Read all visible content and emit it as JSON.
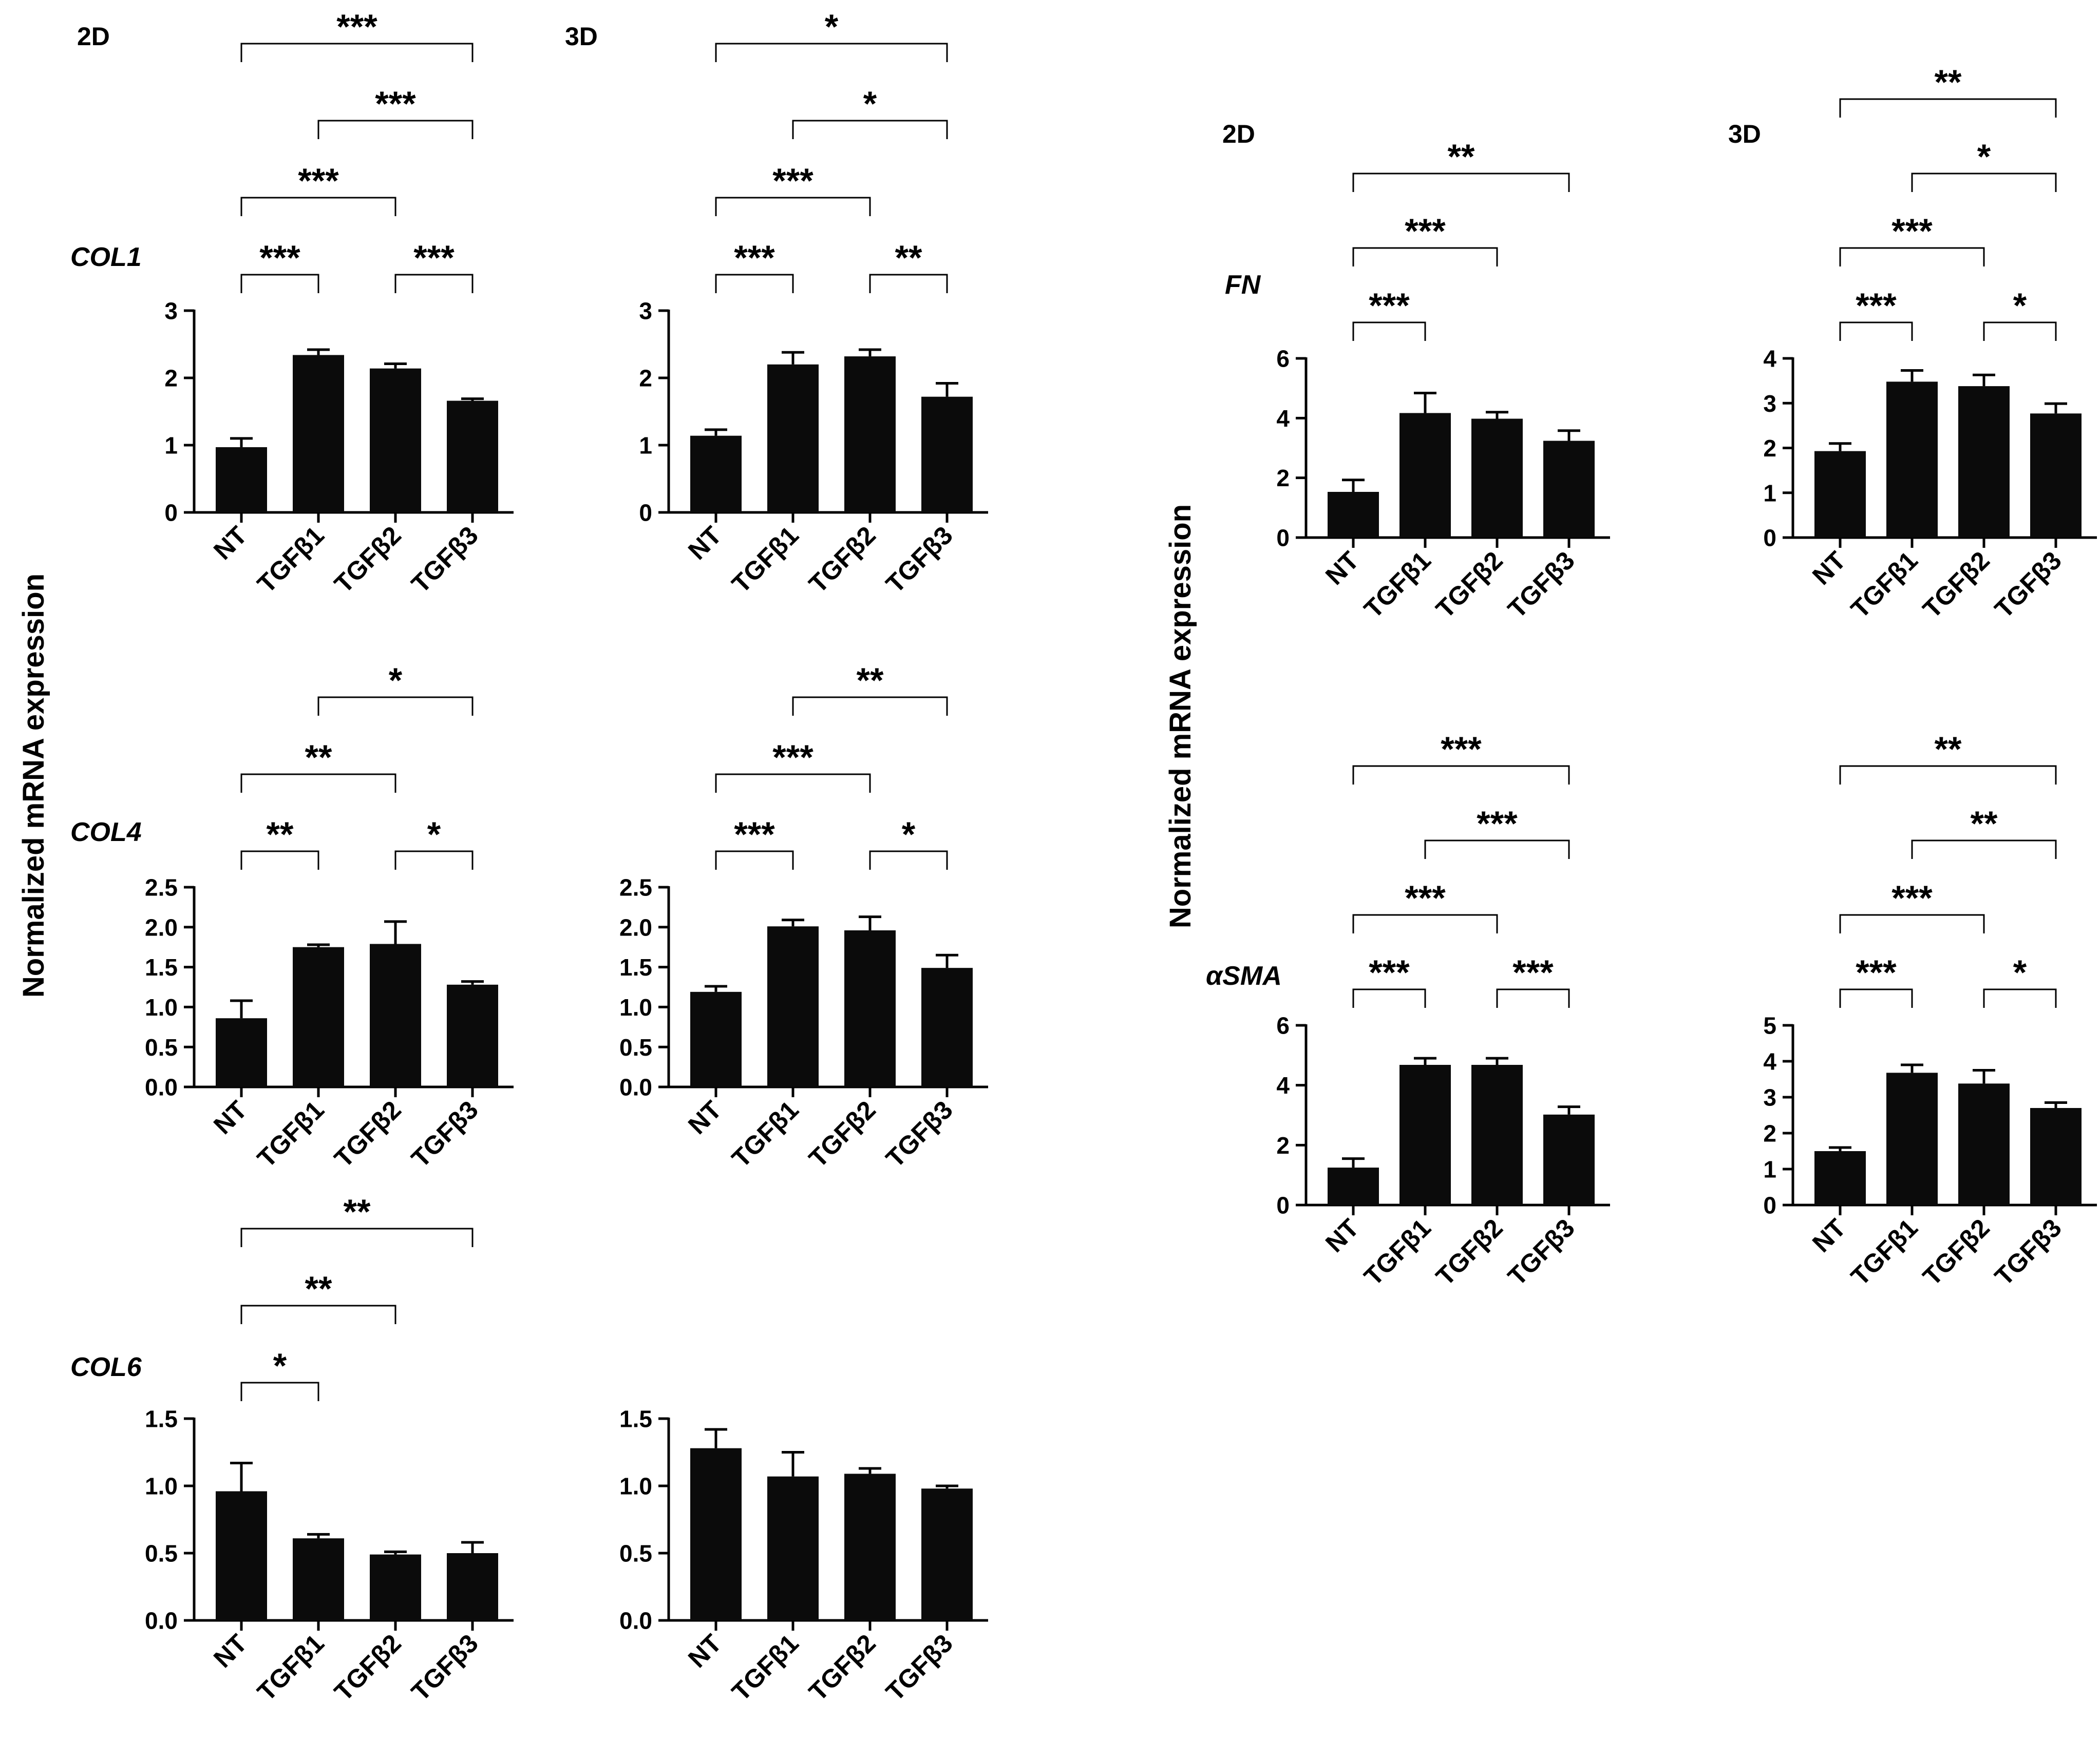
{
  "figure": {
    "yaxis_label_left": "Normalized mRNA expression",
    "yaxis_label_right": "Normalized mRNA expression",
    "condition_labels": [
      "2D",
      "3D",
      "2D",
      "3D"
    ],
    "gene_labels": [
      "COL1",
      "COL4",
      "COL6",
      "FN",
      "αSMA"
    ]
  },
  "chart_data": [
    {
      "type": "bar",
      "title": "COL1 2D",
      "gene": "COL1",
      "condition": "2D",
      "categories": [
        "NT",
        "TGFβ1",
        "TGFβ2",
        "TGFβ3"
      ],
      "values": [
        0.97,
        2.34,
        2.14,
        1.66
      ],
      "errors": [
        0.13,
        0.08,
        0.07,
        0.03
      ],
      "ylim": [
        0,
        3
      ],
      "yticks": [
        "0",
        "1",
        "2",
        "3"
      ],
      "significance": [
        {
          "from": 0,
          "to": 1,
          "label": "***"
        },
        {
          "from": 2,
          "to": 3,
          "label": "***"
        },
        {
          "from": 0,
          "to": 2,
          "label": "***"
        },
        {
          "from": 1,
          "to": 3,
          "label": "***"
        },
        {
          "from": 0,
          "to": 3,
          "label": "***"
        }
      ]
    },
    {
      "type": "bar",
      "title": "COL1 3D",
      "gene": "COL1",
      "condition": "3D",
      "categories": [
        "NT",
        "TGFβ1",
        "TGFβ2",
        "TGFβ3"
      ],
      "values": [
        1.14,
        2.2,
        2.32,
        1.72
      ],
      "errors": [
        0.09,
        0.18,
        0.1,
        0.2
      ],
      "ylim": [
        0,
        3
      ],
      "yticks": [
        "0",
        "1",
        "2",
        "3"
      ],
      "significance": [
        {
          "from": 0,
          "to": 1,
          "label": "***"
        },
        {
          "from": 2,
          "to": 3,
          "label": "**"
        },
        {
          "from": 0,
          "to": 2,
          "label": "***"
        },
        {
          "from": 1,
          "to": 3,
          "label": "*"
        },
        {
          "from": 0,
          "to": 3,
          "label": "*"
        }
      ]
    },
    {
      "type": "bar",
      "title": "COL4 2D",
      "gene": "COL4",
      "condition": "2D",
      "categories": [
        "NT",
        "TGFβ1",
        "TGFβ2",
        "TGFβ3"
      ],
      "values": [
        0.86,
        1.75,
        1.79,
        1.28
      ],
      "errors": [
        0.22,
        0.03,
        0.28,
        0.04
      ],
      "ylim": [
        0,
        2.5
      ],
      "yticks": [
        "0.0",
        "0.5",
        "1.0",
        "1.5",
        "2.0",
        "2.5"
      ],
      "significance": [
        {
          "from": 0,
          "to": 1,
          "label": "**"
        },
        {
          "from": 2,
          "to": 3,
          "label": "*"
        },
        {
          "from": 0,
          "to": 2,
          "label": "**"
        },
        {
          "from": 1,
          "to": 3,
          "label": "*"
        }
      ]
    },
    {
      "type": "bar",
      "title": "COL4 3D",
      "gene": "COL4",
      "condition": "3D",
      "categories": [
        "NT",
        "TGFβ1",
        "TGFβ2",
        "TGFβ3"
      ],
      "values": [
        1.19,
        2.01,
        1.96,
        1.49
      ],
      "errors": [
        0.07,
        0.08,
        0.17,
        0.16
      ],
      "ylim": [
        0,
        2.5
      ],
      "yticks": [
        "0.0",
        "0.5",
        "1.0",
        "1.5",
        "2.0",
        "2.5"
      ],
      "significance": [
        {
          "from": 0,
          "to": 1,
          "label": "***"
        },
        {
          "from": 2,
          "to": 3,
          "label": "*"
        },
        {
          "from": 0,
          "to": 2,
          "label": "***"
        },
        {
          "from": 1,
          "to": 3,
          "label": "**"
        }
      ]
    },
    {
      "type": "bar",
      "title": "COL6 2D",
      "gene": "COL6",
      "condition": "2D",
      "categories": [
        "NT",
        "TGFβ1",
        "TGFβ2",
        "TGFβ3"
      ],
      "values": [
        0.96,
        0.61,
        0.49,
        0.5
      ],
      "errors": [
        0.21,
        0.03,
        0.02,
        0.08
      ],
      "ylim": [
        0,
        1.5
      ],
      "yticks": [
        "0.0",
        "0.5",
        "1.0",
        "1.5"
      ],
      "significance": [
        {
          "from": 0,
          "to": 1,
          "label": "*"
        },
        {
          "from": 0,
          "to": 2,
          "label": "**"
        },
        {
          "from": 0,
          "to": 3,
          "label": "**"
        }
      ]
    },
    {
      "type": "bar",
      "title": "COL6 3D",
      "gene": "COL6",
      "condition": "3D",
      "categories": [
        "NT",
        "TGFβ1",
        "TGFβ2",
        "TGFβ3"
      ],
      "values": [
        1.28,
        1.07,
        1.09,
        0.98
      ],
      "errors": [
        0.14,
        0.18,
        0.04,
        0.02
      ],
      "ylim": [
        0,
        1.5
      ],
      "yticks": [
        "0.0",
        "0.5",
        "1.0",
        "1.5"
      ],
      "significance": []
    },
    {
      "type": "bar",
      "title": "FN 2D",
      "gene": "FN",
      "condition": "2D",
      "categories": [
        "NT",
        "TGFβ1",
        "TGFβ2",
        "TGFβ3"
      ],
      "values": [
        1.53,
        4.17,
        3.98,
        3.24
      ],
      "errors": [
        0.4,
        0.67,
        0.22,
        0.34
      ],
      "ylim": [
        0,
        6
      ],
      "yticks": [
        "0",
        "2",
        "4",
        "6"
      ],
      "significance": [
        {
          "from": 0,
          "to": 1,
          "label": "***"
        },
        {
          "from": 0,
          "to": 2,
          "label": "***"
        },
        {
          "from": 0,
          "to": 3,
          "label": "**"
        }
      ]
    },
    {
      "type": "bar",
      "title": "FN 3D",
      "gene": "FN",
      "condition": "3D",
      "categories": [
        "NT",
        "TGFβ1",
        "TGFβ2",
        "TGFβ3"
      ],
      "values": [
        1.93,
        3.48,
        3.38,
        2.77
      ],
      "errors": [
        0.17,
        0.25,
        0.25,
        0.22
      ],
      "ylim": [
        0,
        4
      ],
      "yticks": [
        "0",
        "1",
        "2",
        "3",
        "4"
      ],
      "significance": [
        {
          "from": 0,
          "to": 1,
          "label": "***"
        },
        {
          "from": 2,
          "to": 3,
          "label": "*"
        },
        {
          "from": 0,
          "to": 2,
          "label": "***"
        },
        {
          "from": 1,
          "to": 3,
          "label": "*"
        },
        {
          "from": 0,
          "to": 3,
          "label": "**"
        }
      ]
    },
    {
      "type": "bar",
      "title": "αSMA 2D",
      "gene": "αSMA",
      "condition": "2D",
      "categories": [
        "NT",
        "TGFβ1",
        "TGFβ2",
        "TGFβ3"
      ],
      "values": [
        1.25,
        4.68,
        4.68,
        3.02
      ],
      "errors": [
        0.3,
        0.22,
        0.22,
        0.26
      ],
      "ylim": [
        0,
        6
      ],
      "yticks": [
        "0",
        "2",
        "4",
        "6"
      ],
      "significance": [
        {
          "from": 0,
          "to": 1,
          "label": "***"
        },
        {
          "from": 2,
          "to": 3,
          "label": "***"
        },
        {
          "from": 0,
          "to": 2,
          "label": "***"
        },
        {
          "from": 1,
          "to": 3,
          "label": "***"
        },
        {
          "from": 0,
          "to": 3,
          "label": "***"
        }
      ]
    },
    {
      "type": "bar",
      "title": "αSMA 3D",
      "gene": "αSMA",
      "condition": "3D",
      "categories": [
        "NT",
        "TGFβ1",
        "TGFβ2",
        "TGFβ3"
      ],
      "values": [
        1.5,
        3.68,
        3.38,
        2.7
      ],
      "errors": [
        0.1,
        0.22,
        0.37,
        0.15
      ],
      "ylim": [
        0,
        5
      ],
      "yticks": [
        "0",
        "1",
        "2",
        "3",
        "4",
        "5"
      ],
      "significance": [
        {
          "from": 0,
          "to": 1,
          "label": "***"
        },
        {
          "from": 2,
          "to": 3,
          "label": "*"
        },
        {
          "from": 0,
          "to": 2,
          "label": "***"
        },
        {
          "from": 1,
          "to": 3,
          "label": "**"
        },
        {
          "from": 0,
          "to": 3,
          "label": "**"
        }
      ]
    }
  ]
}
